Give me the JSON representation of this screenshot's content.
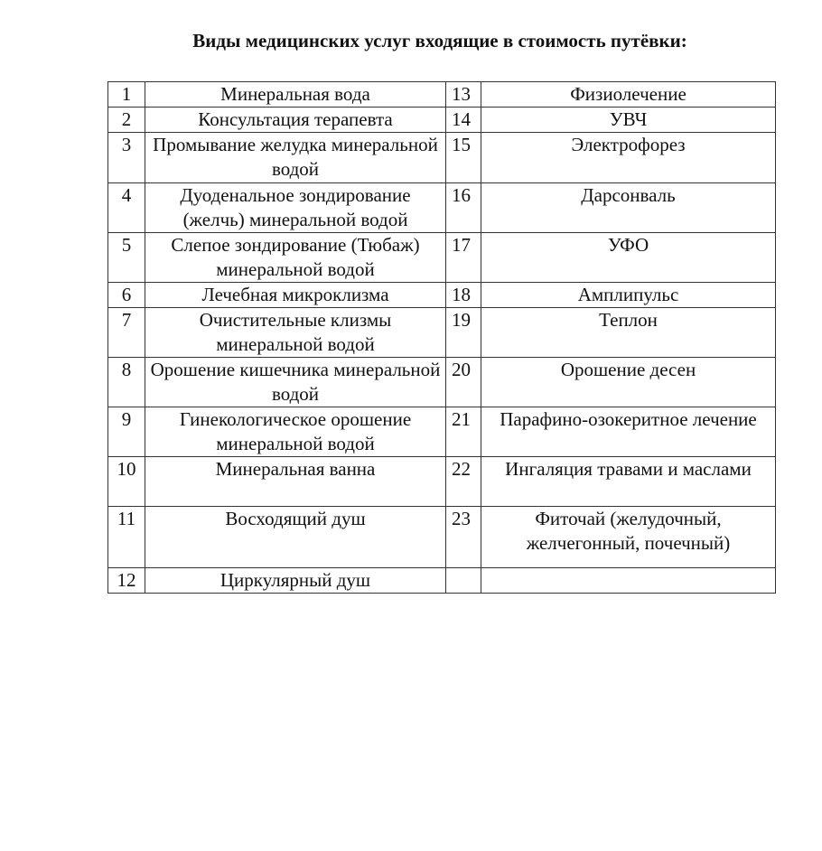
{
  "title": "Виды медицинских услуг входящие в стоимость путёвки:",
  "rows": [
    {
      "n1": "1",
      "s1": "Минеральная вода",
      "n2": "13",
      "s2": "Физиолечение"
    },
    {
      "n1": "2",
      "s1": "Консультация терапевта",
      "n2": "14",
      "s2": "УВЧ"
    },
    {
      "n1": "3",
      "s1": "Промывание желудка минеральной водой",
      "n2": "15",
      "s2": "Электрофорез"
    },
    {
      "n1": "4",
      "s1": "Дуоденальное зондирование (желчь) минеральной водой",
      "n2": "16",
      "s2": "Дарсонваль"
    },
    {
      "n1": "5",
      "s1": "Слепое зондирование (Тюбаж) минеральной водой",
      "n2": "17",
      "s2": "УФО"
    },
    {
      "n1": "6",
      "s1": "Лечебная микроклизма",
      "n2": "18",
      "s2": "Амплипульс"
    },
    {
      "n1": "7",
      "s1": "Очистительные клизмы минеральной водой",
      "n2": "19",
      "s2": "Теплон"
    },
    {
      "n1": "8",
      "s1": "Орошение кишечника минеральной водой",
      "n2": "20",
      "s2": "Орошение десен"
    },
    {
      "n1": "9",
      "s1": "Гинекологическое орошение минеральной водой",
      "n2": "21",
      "s2": "Парафино-озокеритное лечение"
    },
    {
      "n1": "10",
      "s1": "Минеральная ванна",
      "n2": "22",
      "s2": "Ингаляция травами и маслами"
    },
    {
      "n1": "11",
      "s1": "Восходящий душ",
      "n2": "23",
      "s2": "Фиточай (желудочный, желчегонный, почечный)"
    },
    {
      "n1": "12",
      "s1": "Циркулярный душ",
      "n2": "",
      "s2": ""
    }
  ]
}
